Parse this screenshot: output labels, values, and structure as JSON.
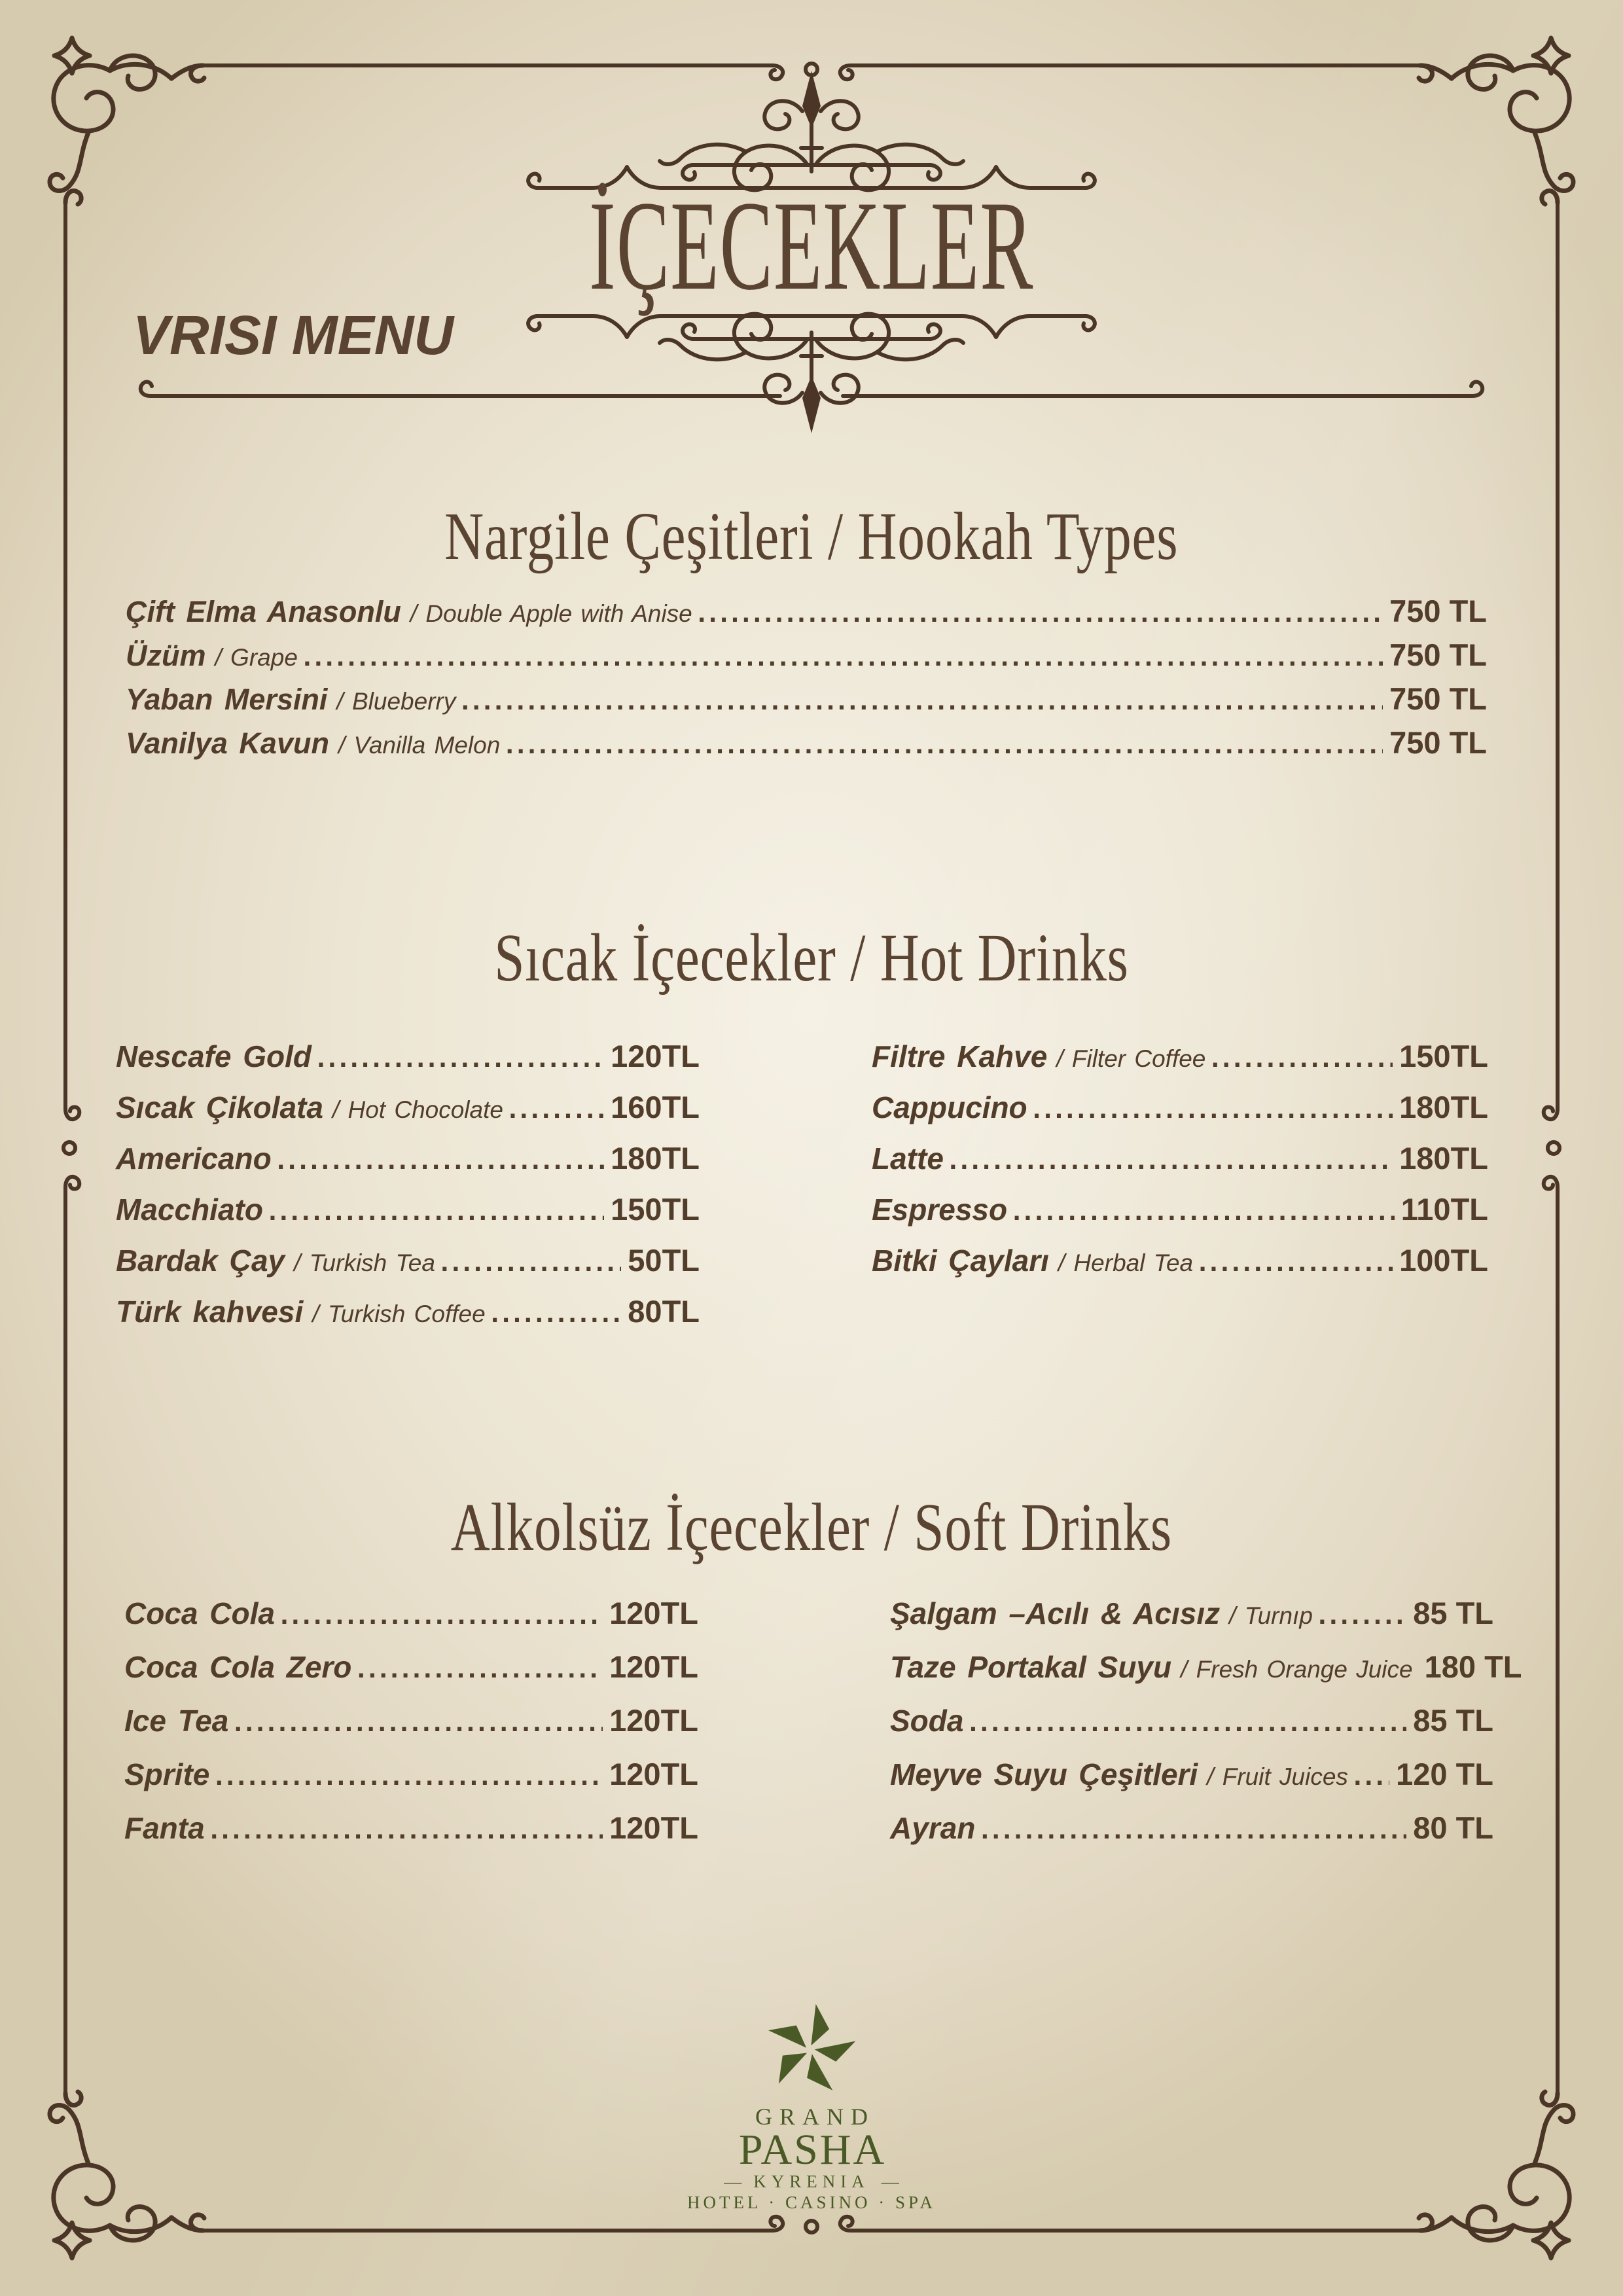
{
  "colors": {
    "background": "#e9e2cf",
    "ink": "#523d2a",
    "heading": "#5a4431",
    "frame": "#4a3526",
    "logo_green": "#4a5a26"
  },
  "brand_label": "VRISI MENU",
  "title": "İÇECEKLER",
  "sections": [
    {
      "title": "Nargile Çeşitleri / Hookah Types",
      "items": [
        {
          "name": "Çift Elma Anasonlu",
          "en": "Double Apple with Anise",
          "price": "750 TL"
        },
        {
          "name": "Üzüm",
          "en": "Grape",
          "price": "750 TL"
        },
        {
          "name": "Yaban Mersini",
          "en": "Blueberry",
          "price": "750 TL"
        },
        {
          "name": "Vanilya Kavun",
          "en": "Vanilla Melon",
          "price": "750 TL"
        }
      ]
    },
    {
      "title": "Sıcak İçecekler / Hot Drinks",
      "columns": [
        [
          {
            "name": "Nescafe Gold",
            "en": "",
            "price": "120TL"
          },
          {
            "name": "Sıcak Çikolata",
            "en": "Hot Chocolate",
            "price": "160TL"
          },
          {
            "name": "Americano",
            "en": "",
            "price": "180TL"
          },
          {
            "name": "Macchiato",
            "en": "",
            "price": "150TL"
          },
          {
            "name": "Bardak Çay",
            "en": "Turkish Tea",
            "price": "50TL"
          },
          {
            "name": "Türk kahvesi",
            "en": "Turkish Coffee",
            "price": "80TL"
          }
        ],
        [
          {
            "name": "Filtre Kahve",
            "en": "Filter Coffee",
            "price": "150TL"
          },
          {
            "name": "Cappucino",
            "en": "",
            "price": "180TL"
          },
          {
            "name": "Latte",
            "en": "",
            "price": "180TL"
          },
          {
            "name": "Espresso",
            "en": "",
            "price": "110TL"
          },
          {
            "name": "Bitki Çayları",
            "en": "Herbal Tea",
            "price": "100TL"
          }
        ]
      ]
    },
    {
      "title": "Alkolsüz İçecekler / Soft Drinks",
      "columns": [
        [
          {
            "name": "Coca Cola",
            "en": "",
            "price": "120TL"
          },
          {
            "name": "Coca Cola Zero",
            "en": "",
            "price": "120TL"
          },
          {
            "name": "Ice Tea",
            "en": "",
            "price": "120TL"
          },
          {
            "name": "Sprite",
            "en": "",
            "price": "120TL"
          },
          {
            "name": "Fanta",
            "en": "",
            "price": "120TL"
          }
        ],
        [
          {
            "name": "Şalgam –Acılı & Acısız",
            "en": "Turnıp",
            "price": "85 TL"
          },
          {
            "name": "Taze Portakal Suyu",
            "en": "Fresh Orange Juice",
            "price": "180 TL"
          },
          {
            "name": "Soda",
            "en": "",
            "price": "85 TL"
          },
          {
            "name": "Meyve Suyu Çeşitleri",
            "en": "Fruit Juices",
            "price": "120 TL"
          },
          {
            "name": "Ayran",
            "en": "",
            "price": "80 TL"
          }
        ]
      ]
    }
  ],
  "footer": {
    "logo_top": "GRAND",
    "logo_main": "PASHA",
    "logo_dash": "—",
    "logo_location": "KYRENIA",
    "logo_tagline": "HOTEL · CASINO · SPA"
  }
}
